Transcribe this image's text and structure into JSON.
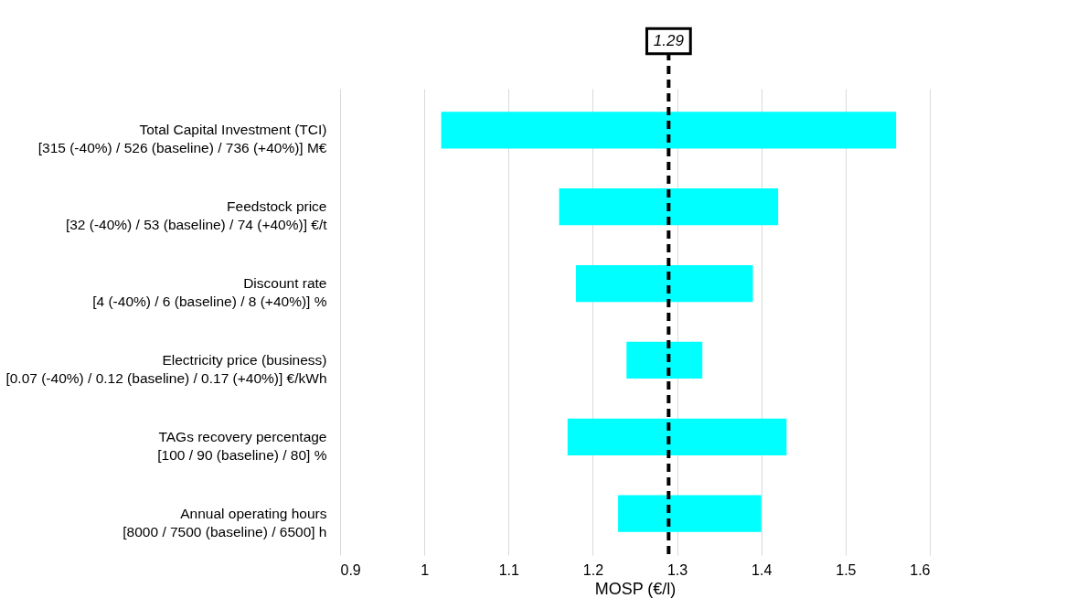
{
  "chart_data": {
    "type": "bar",
    "orientation": "horizontal",
    "xlabel": "MOSP (€/l)",
    "categories": [
      "Total Capital Investment (TCI)\n[315 (-40%) / 526 (baseline) / 736 (+40%)] M€",
      "Feedstock price\n[32 (-40%) / 53 (baseline) / 74 (+40%)] €/t",
      "Discount rate\n[4 (-40%) / 6 (baseline) / 8 (+40%)] %",
      "Electricity price (business)\n[0.07 (-40%) / 0.12 (baseline) / 0.17 (+40%)] €/kWh",
      "TAGs recovery percentage\n[100 / 90 (baseline) / 80] %",
      "Annual operating hours\n[8000 / 7500 (baseline) / 6500] h"
    ],
    "base": [
      1.02,
      1.16,
      1.18,
      1.24,
      1.17,
      1.23
    ],
    "values": [
      0.54,
      0.26,
      0.21,
      0.09,
      0.26,
      0.17
    ],
    "color": "#00ffff",
    "xlim": [
      0.9,
      1.6
    ],
    "xticks": [
      0.9,
      1,
      1.1,
      1.2,
      1.3,
      1.4,
      1.5,
      1.6
    ],
    "grid": "x",
    "ref_lines": [
      {
        "axis": "x",
        "value": 1.29,
        "label": "1.29",
        "color": "#000000",
        "line_style": "dashed"
      }
    ]
  }
}
